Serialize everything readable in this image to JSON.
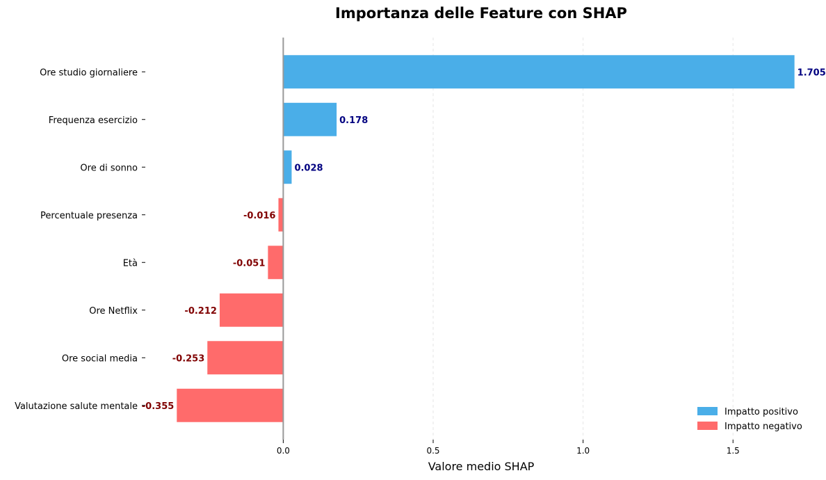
{
  "chart_data": {
    "type": "bar",
    "orientation": "horizontal",
    "title": "Importanza delle Feature con SHAP",
    "xlabel": "Valore medio SHAP",
    "ylabel": "",
    "categories": [
      "Ore studio giornaliere",
      "Frequenza esercizio",
      "Ore di sonno",
      "Percentuale presenza",
      "Età",
      "Ore Netflix",
      "Ore social media",
      "Valutazione salute mentale"
    ],
    "values": [
      1.705,
      0.178,
      0.028,
      -0.016,
      -0.051,
      -0.212,
      -0.253,
      -0.355
    ],
    "value_labels": [
      "1.705",
      "0.178",
      "0.028",
      "-0.016",
      "-0.051",
      "-0.212",
      "-0.253",
      "-0.355"
    ],
    "xlim": [
      -0.46,
      1.78
    ],
    "xticks": [
      0.0,
      0.5,
      1.0,
      1.5
    ],
    "xtick_labels": [
      "0.0",
      "0.5",
      "1.0",
      "1.5"
    ],
    "grid": "x-dashed",
    "colors": {
      "positive": "#4AAEE8",
      "negative": "#FF6B6B",
      "positive_label": "#000080",
      "negative_label": "#800000",
      "zero_line": "#999999",
      "grid": "#e6e6e6"
    },
    "legend": {
      "placement": "bottom-right",
      "entries": [
        {
          "label": "Impatto positivo",
          "color": "#4AAEE8"
        },
        {
          "label": "Impatto negativo",
          "color": "#FF6B6B"
        }
      ]
    }
  }
}
